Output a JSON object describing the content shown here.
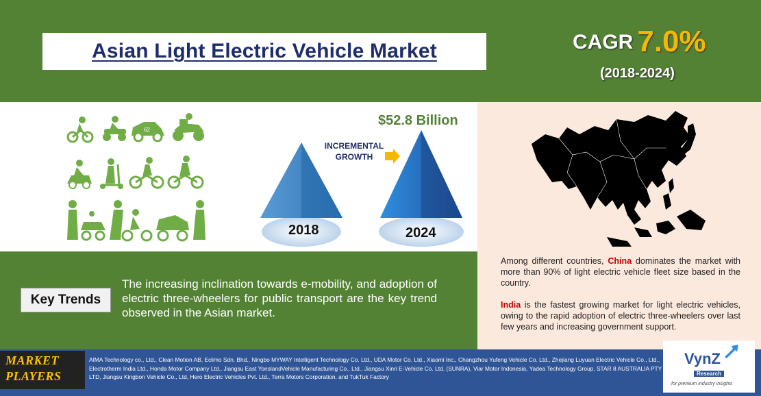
{
  "header": {
    "title": "Asian Light Electric Vehicle Market",
    "cagr_label": "CAGR",
    "cagr_value": "7.0%",
    "cagr_period": "(2018-2024)"
  },
  "growth": {
    "value_label": "$52.8 Billion",
    "incremental_line1": "INCREMENTAL",
    "incremental_line2": "GROWTH",
    "year_start": "2018",
    "year_end": "2024"
  },
  "key_trends": {
    "label": "Key Trends",
    "text": "The increasing inclination towards e-mobility, and adoption of electric three-wheelers for public transport are the key trend observed in the Asian market."
  },
  "insights": {
    "china_name": "China",
    "china_text": " dominates the market with more than 90% of light electric vehicle fleet size based in the country.",
    "china_prefix": "Among different countries, ",
    "india_name": "India",
    "india_text": " is the fastest growing market for light electric vehicles, owing to the rapid adoption of electric three-wheelers over last few years and increasing government support."
  },
  "players": {
    "label_line1": "MARKET",
    "label_line2": "PLAYERS",
    "text": "AIMA Technology co., Ltd., Clean Motion AB, Eclimo Sdn. Bhd., Ningbo MYWAY Intelligent Technology Co. Ltd., UDA Motor Co. Ltd., Xiaomi Inc., Changzhou Yufeng Vehicle Co. Ltd., Zhejiang Luyuan Electric Vehicle Co., Ltd., Electrotherm India Ltd., Honda Motor Company Ltd., Jiangsu East YonslandVehicle Manufacturing Co., Ltd., Jiangsu Xinri E-Vehicle Co. Ltd. (SUNRA), Viar Motor Indonesia, Yadea Technology Group, STAR 8 AUSTRALIA PTY LTD, Jiangsu Kingbon Vehicle Co., Ltd, Hero Electric Vehicles Pvt. Ltd., Terra Motors Corporation, and TukTuk Factory"
  },
  "logo": {
    "name": "VynZ",
    "sub": "Research",
    "tagline": "for premium industry insights"
  },
  "colors": {
    "green": "#548235",
    "navy": "#1f2d6b",
    "blue_band": "#2f5597",
    "gold": "#f5b800",
    "pink_panel": "#fce9dd"
  },
  "icons": [
    "kid-balance-bike-icon",
    "kid-quad-bike-icon",
    "kid-electric-car-icon",
    "kid-motorbike-icon",
    "kid-ride-on-icon",
    "kid-scooter-icon",
    "kid-bicycle-icon",
    "kid-bicycle-2-icon",
    "parent-kid-car-icon",
    "parent-kid-bike-icon",
    "parent-kid-toy-car-icon"
  ]
}
